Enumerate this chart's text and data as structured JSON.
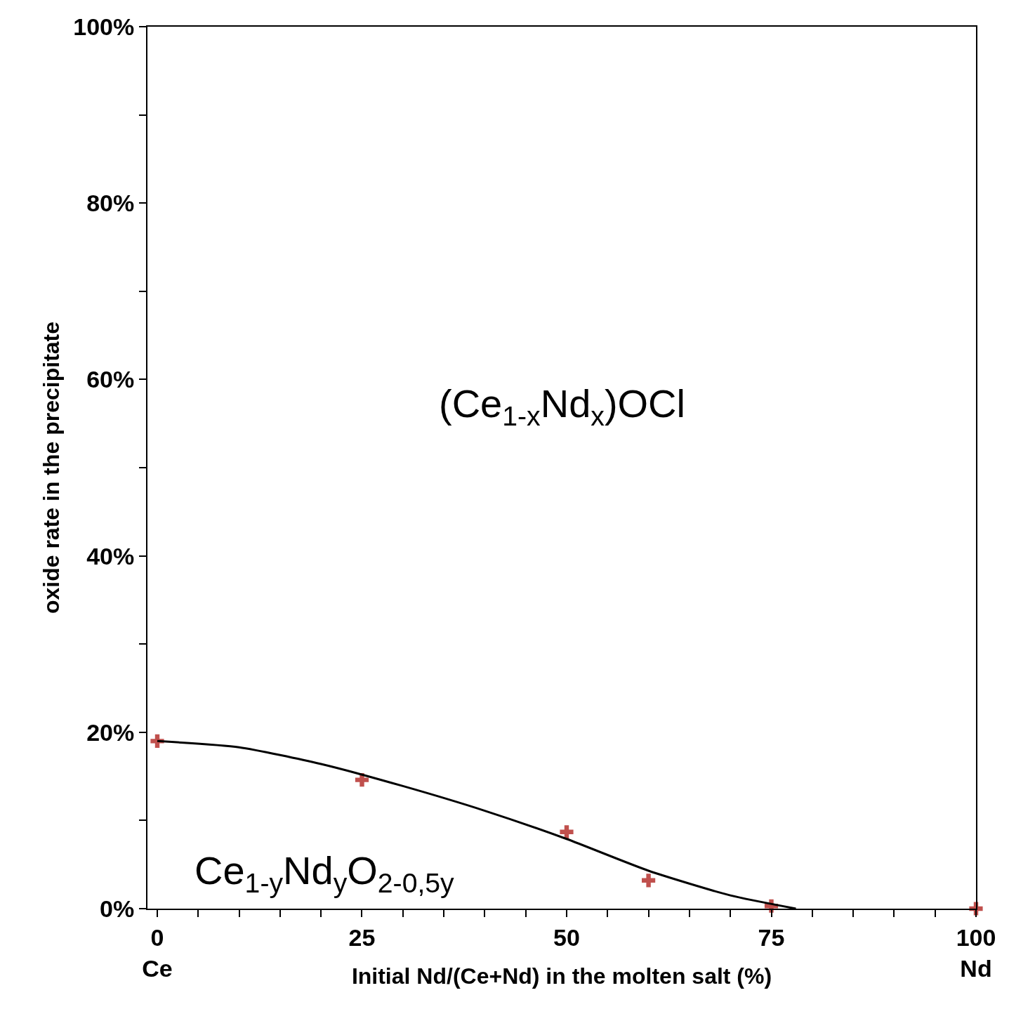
{
  "chart_data": {
    "type": "scatter",
    "xlabel": "Initial Nd/(Ce+Nd) in the molten salt (%)",
    "ylabel": "oxide rate in the precipitate",
    "xlim": [
      -1.2,
      100
    ],
    "ylim": [
      0,
      100
    ],
    "xticks": [
      {
        "value": 0,
        "label": "0\nCe"
      },
      {
        "value": 5,
        "label": null
      },
      {
        "value": 10,
        "label": null
      },
      {
        "value": 15,
        "label": null
      },
      {
        "value": 20,
        "label": null
      },
      {
        "value": 25,
        "label": "25"
      },
      {
        "value": 30,
        "label": null
      },
      {
        "value": 35,
        "label": null
      },
      {
        "value": 40,
        "label": null
      },
      {
        "value": 45,
        "label": null
      },
      {
        "value": 50,
        "label": "50"
      },
      {
        "value": 55,
        "label": null
      },
      {
        "value": 60,
        "label": null
      },
      {
        "value": 65,
        "label": null
      },
      {
        "value": 70,
        "label": null
      },
      {
        "value": 75,
        "label": "75"
      },
      {
        "value": 80,
        "label": null
      },
      {
        "value": 85,
        "label": null
      },
      {
        "value": 90,
        "label": null
      },
      {
        "value": 95,
        "label": null
      },
      {
        "value": 100,
        "label": "100\nNd"
      }
    ],
    "yticks": [
      {
        "value": 0,
        "label": "0%"
      },
      {
        "value": 10,
        "label": null
      },
      {
        "value": 20,
        "label": "20%"
      },
      {
        "value": 30,
        "label": null
      },
      {
        "value": 40,
        "label": "40%"
      },
      {
        "value": 50,
        "label": null
      },
      {
        "value": 60,
        "label": "60%"
      },
      {
        "value": 70,
        "label": null
      },
      {
        "value": 80,
        "label": "80%"
      },
      {
        "value": 90,
        "label": null
      },
      {
        "value": 100,
        "label": "100%"
      }
    ],
    "grid": false,
    "legend": false,
    "series": [
      {
        "marker": "cross",
        "color": "#c0504d",
        "x": [
          0,
          25,
          50,
          60,
          75,
          100
        ],
        "values": [
          19,
          14.6,
          8.7,
          3.2,
          0.3,
          0
        ]
      },
      {
        "type": "line",
        "marker": "none",
        "line_style": "solid",
        "color": "#000000",
        "x": [
          0,
          10,
          20,
          30,
          40,
          50,
          60,
          70,
          78
        ],
        "values": [
          19,
          18.3,
          16.4,
          13.9,
          11.1,
          7.9,
          4.3,
          1.5,
          0
        ]
      }
    ],
    "annotations": [
      "(Ce$_{1-x}$Nd$_{x}$)OCl",
      "Ce$_{1-y}$Nd$_{y}$O$_{2-0,5y}$"
    ]
  }
}
